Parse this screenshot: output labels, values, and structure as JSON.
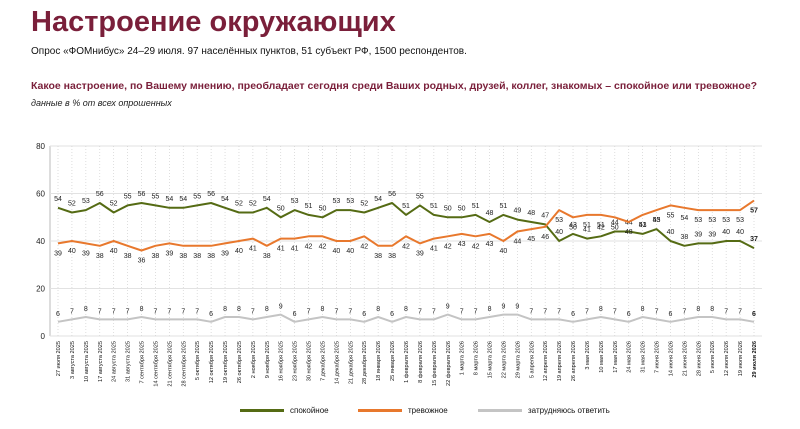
{
  "header": {
    "title": "Настроение окружающих",
    "subtitle": "Опрос «ФОМнибус» 24–29 июля. 97 населённых пунктов, 51 субъект РФ, 1500 респондентов.",
    "question": "Какое настроение, по Вашему мнению, преобладает сегодня среди Ваших родных, друзей, коллег, знакомых – спокойное или тревожное?",
    "note": "данные в % от всех опрошенных"
  },
  "colors": {
    "calm": "#556b14",
    "anxious": "#e8782d",
    "undecided": "#c4c4c4",
    "title": "#7a1f3a"
  },
  "chart_data": {
    "type": "line",
    "title": "",
    "xlabel": "",
    "ylabel": "",
    "ylim": [
      0,
      80
    ],
    "yticks": [
      0,
      20,
      40,
      60,
      80
    ],
    "grid": true,
    "legend_position": "bottom",
    "x": [
      "27 июля 2025",
      "3 августа 2025",
      "10 августа 2025",
      "17 августа 2025",
      "24 августа 2025",
      "31 августа 2025",
      "7 сентября 2025",
      "14 сентября 2025",
      "21 сентября 2025",
      "28 сентября 2025",
      "5 октября 2025",
      "12 октября 2025",
      "19 октября 2025",
      "26 октября 2025",
      "2 ноября 2025",
      "9 ноября 2025",
      "16 ноября 2025",
      "23 ноября 2025",
      "30 ноября 2025",
      "7 декабря 2025",
      "14 декабря 2025",
      "21 декабря 2025",
      "28 декабря 2025",
      "18 января 2026",
      "25 января 2026",
      "1 февраля 2026",
      "8 февраля 2026",
      "15 февраля 2026",
      "22 февраля 2026",
      "1 марта 2026",
      "8 марта 2026",
      "15 марта 2026",
      "22 марта 2026",
      "29 марта 2026",
      "5 апреля 2026",
      "12 апреля 2026",
      "19 апреля 2026",
      "26 апреля 2026",
      "3 мая 2026",
      "10 мая 2026",
      "17 мая 2026",
      "24 мая 2026",
      "31 мая 2026",
      "7 июня 2026",
      "14 июня 2026",
      "21 июня 2026",
      "28 июня 2026",
      "5 июля 2026",
      "12 июля 2026",
      "19 июля 2026",
      "29 июля 2026"
    ],
    "series": [
      {
        "name": "спокойное",
        "color": "#556b14",
        "values": [
          54,
          52,
          53,
          56,
          52,
          55,
          56,
          55,
          54,
          54,
          55,
          56,
          54,
          52,
          52,
          54,
          50,
          53,
          51,
          50,
          53,
          53,
          52,
          54,
          56,
          51,
          55,
          51,
          50,
          50,
          51,
          48,
          51,
          49,
          48,
          47,
          40,
          43,
          41,
          42,
          44,
          44,
          43,
          45,
          40,
          38,
          39,
          39,
          40,
          40,
          37
        ]
      },
      {
        "name": "тревожное",
        "color": "#e8782d",
        "values": [
          39,
          40,
          39,
          38,
          40,
          38,
          36,
          38,
          39,
          38,
          38,
          38,
          39,
          40,
          41,
          38,
          41,
          41,
          42,
          42,
          40,
          40,
          42,
          38,
          38,
          42,
          39,
          41,
          42,
          43,
          42,
          43,
          40,
          44,
          45,
          46,
          53,
          50,
          51,
          51,
          50,
          48,
          51,
          53,
          55,
          54,
          53,
          53,
          53,
          53,
          57
        ]
      },
      {
        "name": "затрудняюсь ответить",
        "color": "#c4c4c4",
        "values": [
          6,
          7,
          8,
          7,
          7,
          7,
          8,
          7,
          7,
          7,
          7,
          6,
          8,
          8,
          7,
          8,
          9,
          6,
          7,
          8,
          7,
          7,
          6,
          8,
          6,
          8,
          7,
          7,
          9,
          7,
          7,
          8,
          9,
          9,
          7,
          7,
          7,
          6,
          7,
          8,
          7,
          6,
          8,
          7,
          6,
          7,
          8,
          8,
          7,
          7,
          6
        ]
      }
    ]
  }
}
